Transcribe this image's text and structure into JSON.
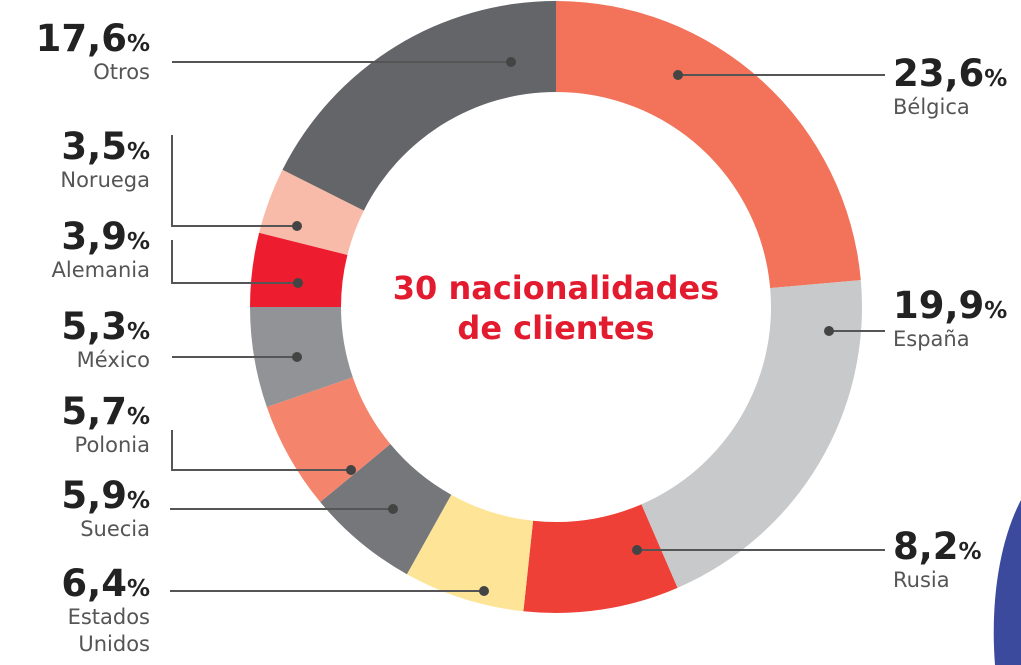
{
  "chart_data": {
    "type": "donut",
    "title": "30 nacionalidades de clientes",
    "categories": [
      "Bélgica",
      "España",
      "Rusia",
      "Estados Unidos",
      "Suecia",
      "Polonia",
      "México",
      "Alemania",
      "Noruega",
      "Otros"
    ],
    "values": [
      23.6,
      19.9,
      8.2,
      6.4,
      5.9,
      5.7,
      5.3,
      3.9,
      3.5,
      17.6
    ],
    "value_labels": [
      "23,6",
      "19,9",
      "8,2",
      "6,4",
      "5,9",
      "5,7",
      "5,3",
      "3,9",
      "3,5",
      "17,6"
    ],
    "unit": "%",
    "colors": [
      "#f2735a",
      "#c8c9cb",
      "#ee4037",
      "#fde497",
      "#76777b",
      "#f4846b",
      "#929396",
      "#ed1c2e",
      "#f9bba9",
      "#646569"
    ]
  }
}
